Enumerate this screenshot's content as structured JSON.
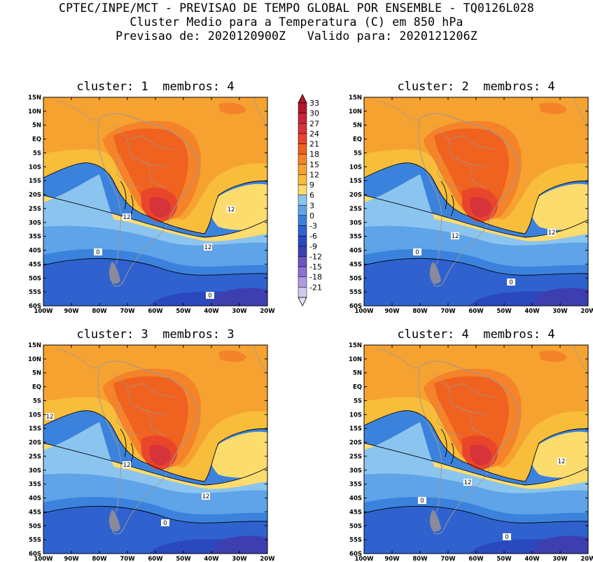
{
  "header": {
    "line1": "CPTEC/INPE/MCT - PREVISAO DE TEMPO GLOBAL POR ENSEMBLE - TQ0126L028",
    "line2": "Cluster Medio para a Temperatura (C) em 850 hPa",
    "line3": "Previsao de: 2020120900Z   Valido para: 2020121206Z"
  },
  "panels": [
    {
      "title": "cluster: 1  membros: 4"
    },
    {
      "title": "cluster: 2  membros: 4"
    },
    {
      "title": "cluster: 3  membros: 3"
    },
    {
      "title": "cluster: 4  membros: 4"
    }
  ],
  "axes": {
    "lat_labels": [
      "15N",
      "10N",
      "5N",
      "EQ",
      "5S",
      "10S",
      "15S",
      "20S",
      "25S",
      "30S",
      "35S",
      "40S",
      "45S",
      "50S",
      "55S",
      "60S"
    ],
    "lon_labels": [
      "100W",
      "90W",
      "80W",
      "70W",
      "60W",
      "50W",
      "40W",
      "30W",
      "20W"
    ]
  },
  "colorbar": {
    "levels": [
      "33",
      "30",
      "27",
      "24",
      "21",
      "18",
      "15",
      "12",
      "9",
      "6",
      "3",
      "0",
      "-3",
      "-6",
      "-9",
      "-12",
      "-15",
      "-18",
      "-21"
    ],
    "colors": [
      "#b2182b",
      "#c5273a",
      "#d6333b",
      "#e8452a",
      "#f0621f",
      "#f5832a",
      "#f6a230",
      "#f8bd3a",
      "#fddc6e",
      "#8cc4f0",
      "#5fa3e8",
      "#3b82dc",
      "#2f62cf",
      "#2a49bf",
      "#3d3fb0",
      "#6b54c4",
      "#8e6fd3",
      "#b09ae0",
      "#d2c8ef"
    ]
  },
  "contour_labels": {
    "p1": [
      "12",
      "12",
      "12",
      "0",
      "0"
    ],
    "p2": [
      "12",
      "12",
      "0",
      "0"
    ],
    "p3": [
      "12",
      "12",
      "12",
      "0"
    ],
    "p4": [
      "12",
      "12",
      "0",
      "0"
    ]
  },
  "colors": {
    "land_outline": "#9a9a9a",
    "contour": "#000000"
  }
}
